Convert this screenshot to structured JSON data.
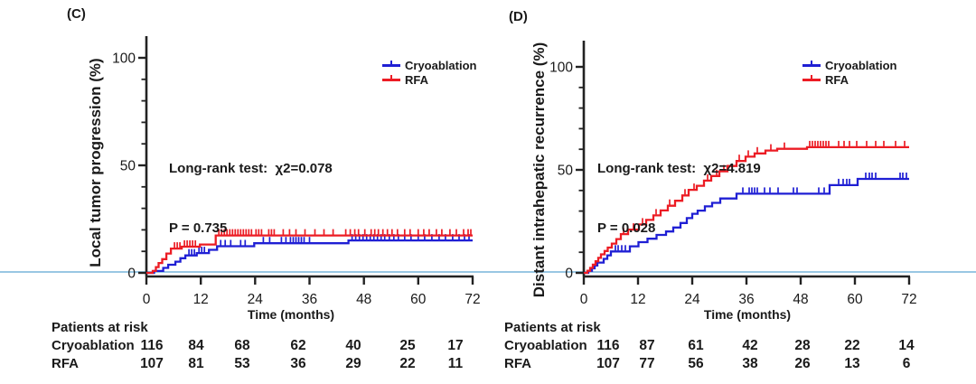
{
  "figure": {
    "background": "#ffffff"
  },
  "colors": {
    "cryoablation": "#1f1fd4",
    "rfa": "#ec1c24",
    "axis": "#222222",
    "text": "#1a1a1a",
    "zero_line": "#99c7e3"
  },
  "chart_data": [
    {
      "type": "line",
      "panel_label": "(C)",
      "ylabel": "Local tumor progression (%)",
      "xlabel": "Time (months)",
      "xlim": [
        0,
        72
      ],
      "ylim": [
        0,
        110
      ],
      "xticks": [
        0,
        12,
        24,
        36,
        48,
        60,
        72
      ],
      "yticks_major": [
        0,
        50,
        100
      ],
      "yticks_minor_step": 10,
      "grid": false,
      "legend_position": "top-right",
      "stats": {
        "line1": "Long-rank test:  χ2=0.078",
        "line2": "P = 0.735"
      },
      "series": [
        {
          "name": "Cryoablation",
          "color": "#1f1fd4",
          "steps": [
            [
              0,
              0
            ],
            [
              1.7,
              0.9
            ],
            [
              3.7,
              2.3
            ],
            [
              4.8,
              3.8
            ],
            [
              6.4,
              5.2
            ],
            [
              7.5,
              6.8
            ],
            [
              8.6,
              8.1
            ],
            [
              11.1,
              9.2
            ],
            [
              13.8,
              10.7
            ],
            [
              15.6,
              12.4
            ],
            [
              23.8,
              13.8
            ],
            [
              44.6,
              15.1
            ]
          ],
          "censor_months": [
            9.4,
            10,
            10.6,
            11.6,
            12.2,
            12.8,
            16.4,
            17.4,
            18.6,
            20.8,
            21.8,
            25.8,
            27.2,
            29.8,
            30.8,
            31.8,
            32.4,
            33,
            33.6,
            34.2,
            34.8,
            36,
            45.4,
            46.2,
            47,
            47.8,
            48.6,
            49.4,
            50.2,
            51,
            51.8,
            52.6,
            53.6,
            54.6,
            55.6,
            57,
            58.4,
            60,
            61.4,
            63,
            64.6,
            66,
            67.6,
            69,
            70.2,
            71.2
          ]
        },
        {
          "name": "RFA",
          "color": "#ec1c24",
          "steps": [
            [
              0,
              0
            ],
            [
              1.4,
              0.9
            ],
            [
              2.1,
              2.7
            ],
            [
              2.7,
              4.6
            ],
            [
              3.5,
              6.4
            ],
            [
              4.4,
              9
            ],
            [
              5.4,
              11.3
            ],
            [
              7.8,
              12.2
            ],
            [
              11.8,
              13.2
            ],
            [
              15.3,
              17.4
            ]
          ],
          "censor_months": [
            6.2,
            6.8,
            7.4,
            8.4,
            9,
            9.6,
            10.2,
            10.8,
            16,
            16.6,
            17.2,
            17.8,
            18.4,
            19,
            19.6,
            20.2,
            20.8,
            21.4,
            22,
            22.6,
            23.2,
            24.2,
            24.8,
            25.4,
            27,
            27.6,
            28.2,
            30.2,
            31.6,
            33,
            35,
            37.2,
            39.2,
            41.2,
            44,
            45,
            46,
            46.8,
            48.2,
            49.6,
            50.4,
            51.2,
            52.2,
            53.2,
            54.2,
            55.4,
            57,
            58.2,
            60,
            61.2,
            62.4,
            64,
            65.2,
            67,
            68.4,
            70,
            71,
            71.6
          ]
        }
      ],
      "at_risk": {
        "header": "Patients at risk",
        "time_points": [
          0,
          12,
          24,
          36,
          48,
          60,
          72
        ],
        "rows": [
          {
            "label": "Cryoablation",
            "values": [
              116,
              84,
              68,
              62,
              40,
              25,
              17
            ]
          },
          {
            "label": "RFA",
            "values": [
              107,
              81,
              53,
              36,
              29,
              22,
              11
            ]
          }
        ]
      }
    },
    {
      "type": "line",
      "panel_label": "(D)",
      "ylabel": "Distant intrahepatic recurrence (%)",
      "xlabel": "Time (months)",
      "xlim": [
        0,
        72
      ],
      "ylim": [
        0,
        110
      ],
      "xticks": [
        0,
        12,
        24,
        36,
        48,
        60,
        72
      ],
      "yticks_major": [
        0,
        50,
        100
      ],
      "yticks_minor_step": 10,
      "grid": false,
      "legend_position": "top-right",
      "stats": {
        "line1": "Long-rank test:  χ2=4.819",
        "line2": "P = 0.028"
      },
      "series": [
        {
          "name": "Cryoablation",
          "color": "#1f1fd4",
          "steps": [
            [
              0,
              0
            ],
            [
              1,
              1
            ],
            [
              1.8,
              2.2
            ],
            [
              2.4,
              3.6
            ],
            [
              3,
              5
            ],
            [
              4.4,
              6.8
            ],
            [
              5.2,
              8.5
            ],
            [
              6,
              10.4
            ],
            [
              10.2,
              12.9
            ],
            [
              12.1,
              14.9
            ],
            [
              14.1,
              16.6
            ],
            [
              16.1,
              18.4
            ],
            [
              18.2,
              20.1
            ],
            [
              19.8,
              22
            ],
            [
              21.4,
              24.2
            ],
            [
              22.8,
              26.6
            ],
            [
              24,
              28.7
            ],
            [
              25.2,
              30.2
            ],
            [
              26.8,
              32.3
            ],
            [
              28.4,
              34
            ],
            [
              30.2,
              36.1
            ],
            [
              33.8,
              38.4
            ],
            [
              54.4,
              42.6
            ],
            [
              60.6,
              45.6
            ]
          ],
          "censor_months": [
            7,
            7.6,
            8.4,
            9.2,
            35.2,
            36.6,
            37.2,
            37.8,
            38.4,
            40,
            41.2,
            43,
            46.4,
            47.2,
            52,
            53.2,
            56.4,
            57.4,
            58.2,
            58.8,
            62.4,
            63.2,
            63.8,
            64.6,
            70,
            70.6,
            71.4
          ]
        },
        {
          "name": "RFA",
          "color": "#ec1c24",
          "steps": [
            [
              0,
              0
            ],
            [
              0.8,
              1
            ],
            [
              1.4,
              2.4
            ],
            [
              2,
              4
            ],
            [
              2.6,
              5.6
            ],
            [
              3.2,
              7.3
            ],
            [
              3.8,
              9
            ],
            [
              4.6,
              10.6
            ],
            [
              5.3,
              12.3
            ],
            [
              6.2,
              14.2
            ],
            [
              7.2,
              16.4
            ],
            [
              8.2,
              18.8
            ],
            [
              9.8,
              21
            ],
            [
              12.2,
              23.5
            ],
            [
              13.8,
              25.7
            ],
            [
              15.4,
              27.9
            ],
            [
              17,
              30.3
            ],
            [
              18.6,
              32.6
            ],
            [
              20.2,
              35
            ],
            [
              21.8,
              37.6
            ],
            [
              23.2,
              40.3
            ],
            [
              25,
              42.3
            ],
            [
              26.6,
              44.8
            ],
            [
              28.2,
              47
            ],
            [
              30,
              49.3
            ],
            [
              31.8,
              51.9
            ],
            [
              33.8,
              54.3
            ],
            [
              35.8,
              56.4
            ],
            [
              37.8,
              58
            ],
            [
              40.2,
              59.4
            ],
            [
              42.8,
              60.2
            ],
            [
              49.4,
              61
            ]
          ],
          "censor_months": [
            8.8,
            11,
            13,
            16,
            19,
            22.4,
            24.4,
            27.4,
            29.4,
            31,
            34.4,
            36.4,
            38.4,
            41.4,
            44.4,
            50,
            50.6,
            51.2,
            51.8,
            52.4,
            53,
            53.6,
            54.2,
            56.4,
            57.6,
            58.8,
            60.4,
            62.6,
            64.6,
            66.4,
            69,
            71
          ]
        }
      ],
      "at_risk": {
        "header": "Patients at risk",
        "time_points": [
          0,
          12,
          24,
          36,
          48,
          60,
          72
        ],
        "rows": [
          {
            "label": "Cryoablation",
            "values": [
              116,
              87,
              61,
              42,
              28,
              22,
              14
            ]
          },
          {
            "label": "RFA",
            "values": [
              107,
              77,
              56,
              38,
              26,
              13,
              6
            ]
          }
        ]
      }
    }
  ]
}
